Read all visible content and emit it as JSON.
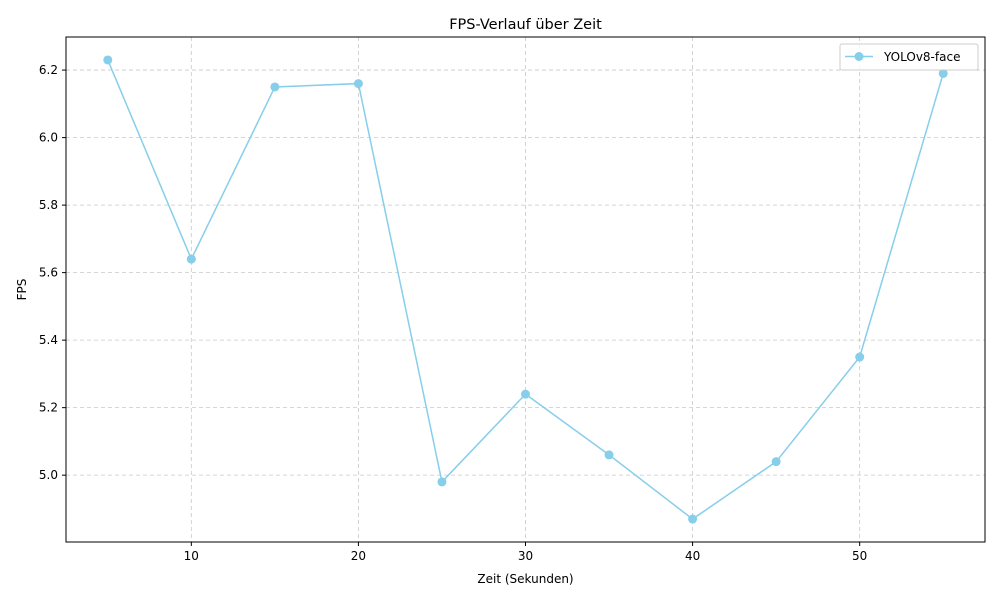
{
  "chart_data": {
    "type": "line",
    "title": "FPS-Verlauf über Zeit",
    "xlabel": "Zeit (Sekunden)",
    "ylabel": "FPS",
    "xlim": [
      2.5,
      57.5
    ],
    "ylim": [
      4.802,
      6.298
    ],
    "x_ticks": [
      10,
      20,
      30,
      40,
      50
    ],
    "y_ticks": [
      5.0,
      5.2,
      5.4,
      5.6,
      5.8,
      6.0,
      6.2
    ],
    "grid": true,
    "legend_position": "top-right",
    "series": [
      {
        "name": "YOLOv8-face",
        "color": "#87CEEB",
        "marker": "circle",
        "x": [
          5,
          10,
          15,
          20,
          25,
          30,
          35,
          40,
          45,
          50,
          55
        ],
        "values": [
          6.23,
          5.64,
          6.15,
          6.16,
          4.98,
          5.24,
          5.06,
          4.87,
          5.04,
          5.35,
          6.19
        ]
      }
    ]
  }
}
